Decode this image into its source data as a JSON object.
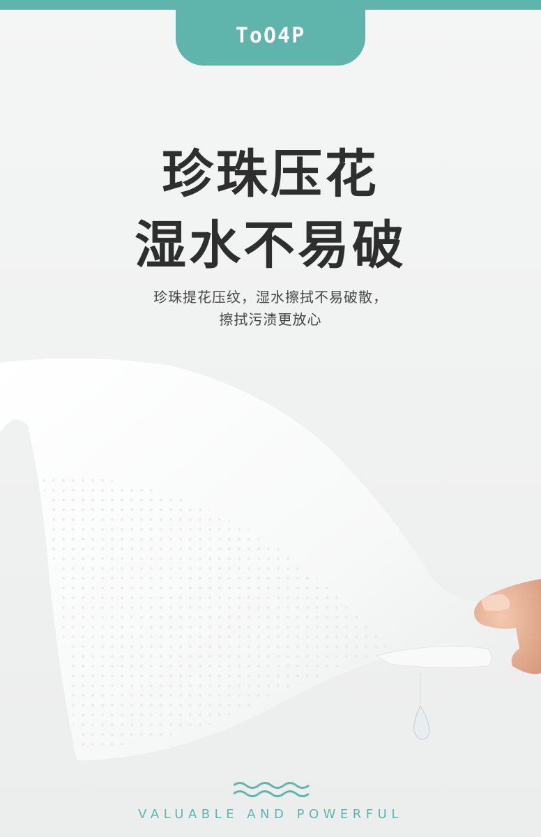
{
  "brand": {
    "logo_text": "ToO4P",
    "accent_color": "#5fb5ab"
  },
  "headline": {
    "line1": "珍珠压花",
    "line2": "湿水不易破"
  },
  "description": {
    "line1": "珍珠提花压纹，湿水擦拭不易破散，",
    "line2": "擦拭污渍更放心"
  },
  "photo": {
    "subject": "tissue-with-hand",
    "icons": [
      "wave-icon"
    ]
  },
  "footer": {
    "tagline": "VALUABLE AND POWERFUL"
  }
}
